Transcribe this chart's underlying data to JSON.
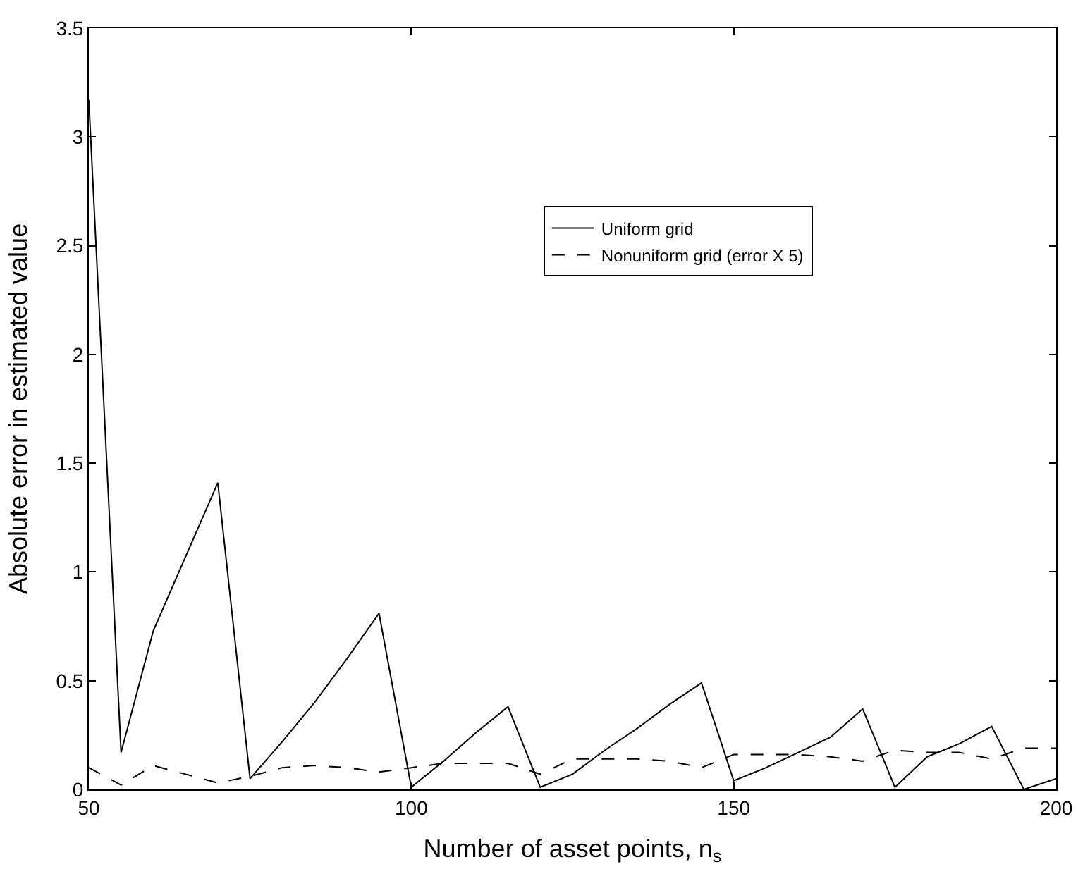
{
  "chart_data": {
    "type": "line",
    "xlabel": "Number of asset points, n$_{s}$",
    "ylabel": "Absolute error in estimated value",
    "x": [
      50,
      55,
      60,
      65,
      70,
      75,
      80,
      85,
      90,
      95,
      100,
      105,
      110,
      115,
      120,
      125,
      130,
      135,
      140,
      145,
      150,
      155,
      160,
      165,
      170,
      175,
      180,
      185,
      190,
      195,
      200
    ],
    "series": [
      {
        "name": "Uniform grid",
        "color": "#000000",
        "line_style": "solid",
        "values": [
          3.17,
          0.17,
          0.73,
          1.07,
          1.41,
          0.05,
          0.22,
          0.4,
          0.6,
          0.81,
          0.01,
          0.13,
          0.26,
          0.38,
          0.01,
          0.07,
          0.18,
          0.28,
          0.39,
          0.49,
          0.04,
          0.1,
          0.17,
          0.24,
          0.37,
          0.01,
          0.15,
          0.21,
          0.29,
          0.0,
          0.05
        ]
      },
      {
        "name": "Nonuniform grid (error X 5)",
        "color": "#000000",
        "line_style": "dashed",
        "values": [
          0.1,
          0.02,
          0.11,
          0.07,
          0.03,
          0.06,
          0.1,
          0.11,
          0.1,
          0.08,
          0.1,
          0.12,
          0.12,
          0.12,
          0.07,
          0.14,
          0.14,
          0.14,
          0.13,
          0.1,
          0.16,
          0.16,
          0.16,
          0.15,
          0.13,
          0.18,
          0.17,
          0.17,
          0.14,
          0.19,
          0.19
        ]
      }
    ],
    "xlim": [
      50,
      200
    ],
    "xticks": [
      50,
      100,
      150,
      200
    ],
    "ylim": [
      0,
      3.5
    ],
    "yticks": [
      0,
      0.5,
      1,
      1.5,
      2,
      2.5,
      3,
      3.5
    ],
    "grid": false,
    "legend": "right",
    "marker": "none"
  }
}
